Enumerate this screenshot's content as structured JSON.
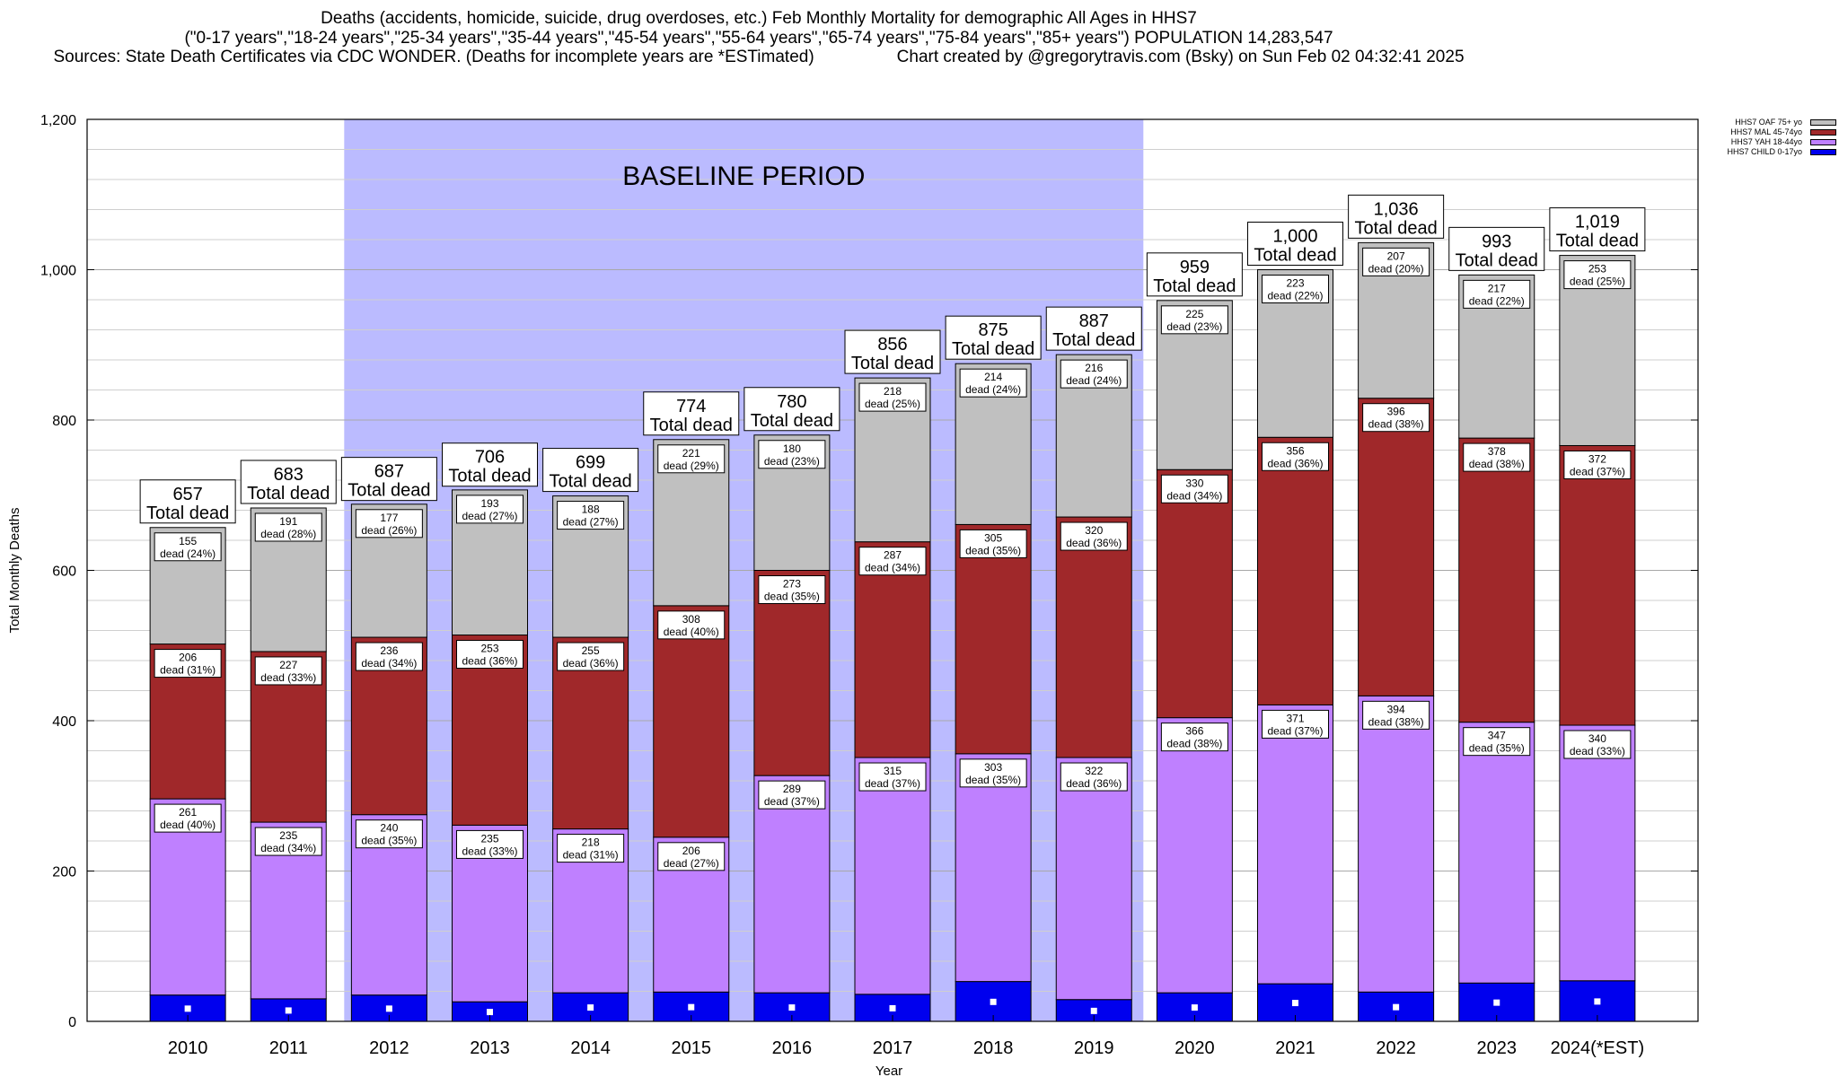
{
  "header": {
    "line1": "Deaths (accidents, homicide, suicide, drug overdoses, etc.) Feb Monthly Mortality for demographic All Ages in HHS7",
    "line2": "(\"0-17 years\",\"18-24 years\",\"25-34 years\",\"35-44 years\",\"45-54 years\",\"55-64 years\",\"65-74 years\",\"75-84 years\",\"85+ years\") POPULATION 14,283,547",
    "line3_left": "Sources: State Death Certificates via CDC WONDER. (Deaths for incomplete years are *ESTimated)",
    "line3_right": "Chart created by @gregorytravis.com (Bsky) on Sun Feb 02 04:32:41 2025"
  },
  "legend": [
    {
      "label": "HHS7 OAF 75+ yo",
      "color": "#c0c0c0"
    },
    {
      "label": "HHS7 MAL 45-74yo",
      "color": "#a0282a"
    },
    {
      "label": "HHS7 YAH 18-44yo",
      "color": "#bf80ff"
    },
    {
      "label": "HHS7 CHILD 0-17yo",
      "color": "#0000ee"
    }
  ],
  "chart_data": {
    "type": "bar",
    "stacked": true,
    "xlabel": "Year",
    "ylabel": "Total Monthly Deaths",
    "ylim": [
      0,
      1200
    ],
    "yticks": [
      0,
      200,
      400,
      600,
      800,
      1000,
      1200
    ],
    "ytick_labels": [
      "0",
      "200",
      "400",
      "600",
      "800",
      "1,000",
      "1,200"
    ],
    "grid": true,
    "legend_position": "top-right",
    "baseline_label": "BASELINE PERIOD",
    "baseline_range": [
      "2012",
      "2019"
    ],
    "total_suffix": "Total dead",
    "segment_prefix": "dead",
    "categories": [
      "2010",
      "2011",
      "2012",
      "2013",
      "2014",
      "2015",
      "2016",
      "2017",
      "2018",
      "2019",
      "2020",
      "2021",
      "2022",
      "2023",
      "2024(*EST)"
    ],
    "totals": [
      657,
      683,
      687,
      706,
      699,
      774,
      780,
      856,
      875,
      887,
      959,
      1000,
      1036,
      993,
      1019
    ],
    "total_labels": [
      "657",
      "683",
      "687",
      "706",
      "699",
      "774",
      "780",
      "856",
      "875",
      "887",
      "959",
      "1,000",
      "1,036",
      "993",
      "1,019"
    ],
    "series": [
      {
        "name": "HHS7 CHILD 0-17yo",
        "color": "#0000ee",
        "values": [
          35,
          30,
          35,
          26,
          38,
          39,
          38,
          36,
          53,
          29,
          38,
          50,
          39,
          51,
          54
        ]
      },
      {
        "name": "HHS7 YAH 18-44yo",
        "color": "#bf80ff",
        "values": [
          261,
          235,
          240,
          235,
          218,
          206,
          289,
          315,
          303,
          322,
          366,
          371,
          394,
          347,
          340
        ],
        "pct": [
          "40%",
          "34%",
          "35%",
          "33%",
          "31%",
          "27%",
          "37%",
          "37%",
          "35%",
          "36%",
          "38%",
          "37%",
          "38%",
          "35%",
          "33%"
        ]
      },
      {
        "name": "HHS7 MAL 45-74yo",
        "color": "#a0282a",
        "values": [
          206,
          227,
          236,
          253,
          255,
          308,
          273,
          287,
          305,
          320,
          330,
          356,
          396,
          378,
          372
        ],
        "pct": [
          "31%",
          "33%",
          "34%",
          "36%",
          "36%",
          "40%",
          "35%",
          "34%",
          "35%",
          "36%",
          "34%",
          "36%",
          "38%",
          "38%",
          "37%"
        ]
      },
      {
        "name": "HHS7 OAF 75+ yo",
        "color": "#c0c0c0",
        "values": [
          155,
          191,
          177,
          193,
          188,
          221,
          180,
          218,
          214,
          216,
          225,
          223,
          207,
          217,
          253
        ],
        "pct": [
          "24%",
          "28%",
          "26%",
          "27%",
          "27%",
          "29%",
          "23%",
          "25%",
          "24%",
          "24%",
          "23%",
          "22%",
          "20%",
          "22%",
          "25%"
        ]
      }
    ]
  }
}
